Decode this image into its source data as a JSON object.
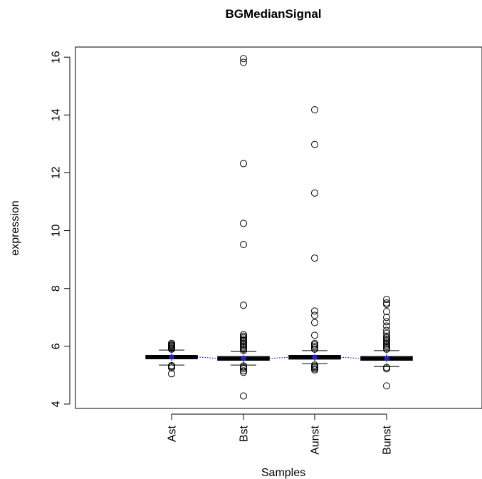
{
  "chart_data": {
    "type": "box",
    "title": "BGMedianSignal",
    "xlabel": "Samples",
    "ylabel": "expression",
    "ylim": [
      3.85,
      16.35
    ],
    "yticks": [
      "4",
      "6",
      "8",
      "10",
      "12",
      "14",
      "16"
    ],
    "ytick_values": [
      4,
      6,
      8,
      10,
      12,
      14,
      16
    ],
    "categories": [
      "Ast",
      "Bst",
      "Aunst",
      "Bunst"
    ],
    "median_line_color": "#0000cc",
    "box_fill": "#1a1a66",
    "boxes": [
      {
        "name": "Ast",
        "whisker_low": 5.35,
        "q1": 5.57,
        "median": 5.63,
        "q3": 5.68,
        "whisker_high": 5.87,
        "outliers": [
          5.05,
          5.25,
          5.3,
          5.33,
          5.9,
          5.93,
          5.96,
          6.0,
          6.03,
          6.06,
          6.1
        ]
      },
      {
        "name": "Bst",
        "whisker_low": 5.35,
        "q1": 5.52,
        "median": 5.58,
        "q3": 5.64,
        "whisker_high": 5.82,
        "outliers": [
          4.28,
          5.1,
          5.15,
          5.22,
          5.28,
          5.32,
          5.85,
          5.9,
          5.95,
          6.0,
          6.05,
          6.1,
          6.15,
          6.2,
          6.25,
          6.3,
          6.35,
          6.4,
          7.42,
          9.52,
          10.25,
          12.32,
          15.82,
          15.95
        ]
      },
      {
        "name": "Aunst",
        "whisker_low": 5.4,
        "q1": 5.56,
        "median": 5.62,
        "q3": 5.68,
        "whisker_high": 5.85,
        "outliers": [
          5.18,
          5.22,
          5.27,
          5.3,
          5.35,
          5.9,
          5.95,
          6.0,
          6.05,
          6.1,
          6.38,
          6.82,
          7.07,
          7.22,
          9.05,
          11.3,
          12.98,
          14.18
        ]
      },
      {
        "name": "Bunst",
        "whisker_low": 5.3,
        "q1": 5.52,
        "median": 5.58,
        "q3": 5.64,
        "whisker_high": 5.85,
        "outliers": [
          4.63,
          5.22,
          5.27,
          5.9,
          5.95,
          6.0,
          6.05,
          6.1,
          6.15,
          6.2,
          6.25,
          6.3,
          6.35,
          6.45,
          6.55,
          6.7,
          6.85,
          7.0,
          7.2,
          7.45,
          7.5,
          7.62
        ]
      }
    ]
  }
}
